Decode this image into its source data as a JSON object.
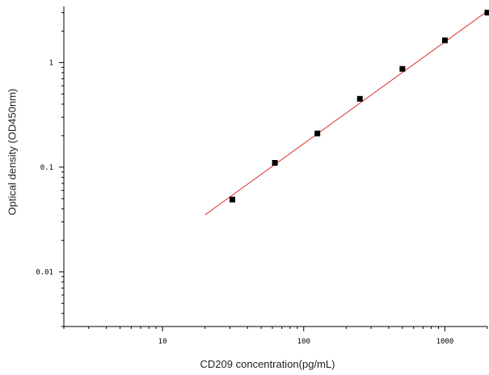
{
  "chart_data": {
    "type": "scatter",
    "xlabel": "CD209 concentration(pg/mL)",
    "ylabel": "Optical density (OD450nm)",
    "x_scale": "log",
    "y_scale": "log",
    "xlim": [
      2,
      2000
    ],
    "ylim": [
      0.003,
      3.2
    ],
    "x_ticks": [
      {
        "value": 10,
        "label": "10"
      },
      {
        "value": 100,
        "label": "100"
      },
      {
        "value": 1000,
        "label": "1000"
      }
    ],
    "y_ticks": [
      {
        "value": 0.01,
        "label": "0.01"
      },
      {
        "value": 0.1,
        "label": "0.1"
      },
      {
        "value": 1,
        "label": "1"
      }
    ],
    "grid": false,
    "series": [
      {
        "marker": "square",
        "color": "#000000",
        "points": [
          {
            "x": 31.25,
            "y": 0.049
          },
          {
            "x": 62.5,
            "y": 0.11
          },
          {
            "x": 125,
            "y": 0.21
          },
          {
            "x": 250,
            "y": 0.45
          },
          {
            "x": 500,
            "y": 0.87
          },
          {
            "x": 1000,
            "y": 1.63
          },
          {
            "x": 2000,
            "y": 3.0
          }
        ]
      }
    ],
    "fit_line": {
      "color": "#e03030",
      "points": [
        {
          "x": 20,
          "y": 0.035
        },
        {
          "x": 2000,
          "y": 3.1
        }
      ]
    }
  }
}
